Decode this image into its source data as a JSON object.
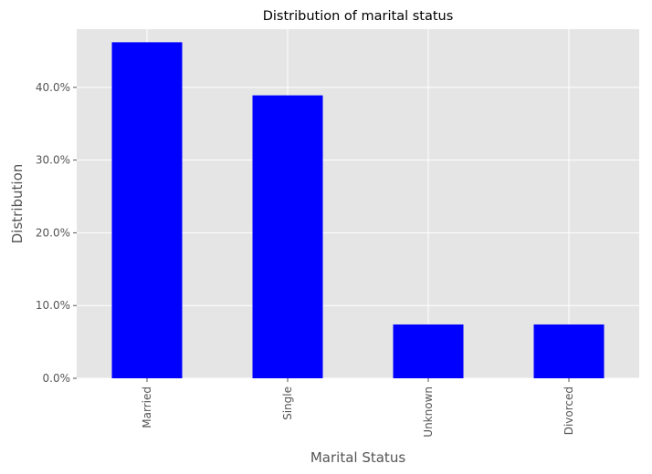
{
  "chart_data": {
    "type": "bar",
    "title": "Distribution of marital status",
    "xlabel": "Marital Status",
    "ylabel": "Distribution",
    "categories": [
      "Married",
      "Single",
      "Unknown",
      "Divorced"
    ],
    "values": [
      0.462,
      0.389,
      0.074,
      0.074
    ],
    "ylim": [
      0,
      0.48
    ],
    "yticks": [
      0.0,
      0.1,
      0.2,
      0.3,
      0.4
    ],
    "ytick_labels": [
      "0.0%",
      "10.0%",
      "20.0%",
      "30.0%",
      "40.0%"
    ],
    "bar_color": "#0000ff",
    "plot_background": "#e5e5e5",
    "grid_color": "#ffffff",
    "grid": true,
    "legend": false
  }
}
